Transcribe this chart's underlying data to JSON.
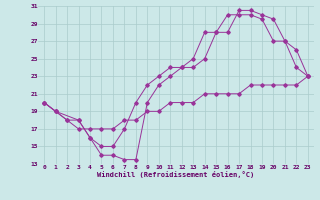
{
  "xlabel": "Windchill (Refroidissement éolien,°C)",
  "background_color": "#cce8e8",
  "grid_color": "#aacccc",
  "line_color": "#993399",
  "xlim": [
    -0.5,
    23.5
  ],
  "ylim": [
    13,
    31
  ],
  "xticks": [
    0,
    1,
    2,
    3,
    4,
    5,
    6,
    7,
    8,
    9,
    10,
    11,
    12,
    13,
    14,
    15,
    16,
    17,
    18,
    19,
    20,
    21,
    22,
    23
  ],
  "yticks": [
    13,
    15,
    17,
    19,
    21,
    23,
    25,
    27,
    29,
    31
  ],
  "s1_x": [
    0,
    1,
    2,
    3,
    4,
    5,
    6,
    7,
    8,
    9,
    10,
    11,
    12,
    13,
    14,
    15,
    16,
    17,
    18,
    19,
    20,
    21,
    22,
    23
  ],
  "s1_y": [
    20,
    19,
    18,
    17,
    17,
    17,
    17,
    18,
    18,
    19,
    19,
    20,
    20,
    20,
    21,
    21,
    21,
    21,
    22,
    22,
    22,
    22,
    22,
    23
  ],
  "s2_x": [
    0,
    1,
    3,
    4,
    5,
    6,
    7,
    8,
    9,
    10,
    11,
    12,
    13,
    14,
    15,
    16,
    17,
    18,
    19,
    20,
    21,
    22,
    23
  ],
  "s2_y": [
    20,
    19,
    18,
    16,
    14,
    14,
    13.5,
    13.5,
    20,
    22,
    23,
    24,
    24,
    25,
    28,
    28,
    30.5,
    30.5,
    30,
    29.5,
    27,
    24,
    23
  ],
  "s3_x": [
    0,
    1,
    2,
    3,
    4,
    5,
    6,
    7,
    8,
    9,
    10,
    11,
    12,
    13,
    14,
    15,
    16,
    17,
    18,
    19,
    20,
    21,
    22,
    23
  ],
  "s3_y": [
    20,
    19,
    18,
    18,
    16,
    15,
    15,
    17,
    20,
    22,
    23,
    24,
    24,
    25,
    28,
    28,
    30,
    30,
    30,
    29.5,
    27,
    27,
    26,
    23
  ]
}
